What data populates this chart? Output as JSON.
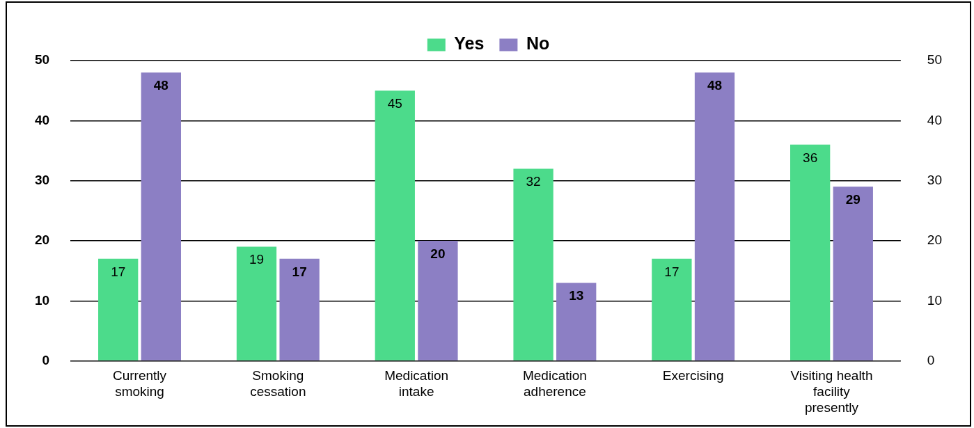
{
  "chart_data": {
    "type": "bar",
    "categories": [
      "Currently smoking",
      "Smoking cessation",
      "Medication intake",
      "Medication adherence",
      "Exercising",
      "Visiting health facility presently"
    ],
    "series": [
      {
        "name": "Yes",
        "color": "#4cdb8b",
        "values": [
          17,
          19,
          45,
          32,
          17,
          36
        ]
      },
      {
        "name": "No",
        "color": "#8c7fc4",
        "values": [
          48,
          17,
          20,
          13,
          48,
          29
        ]
      }
    ],
    "ylim": [
      0,
      50
    ],
    "yticks": [
      0,
      10,
      20,
      30,
      40,
      50
    ],
    "y2lim": [
      0,
      50
    ],
    "y2ticks": [
      0,
      10,
      20,
      30,
      40,
      50
    ],
    "grid": "y",
    "legend": "top",
    "data_labels": true
  }
}
